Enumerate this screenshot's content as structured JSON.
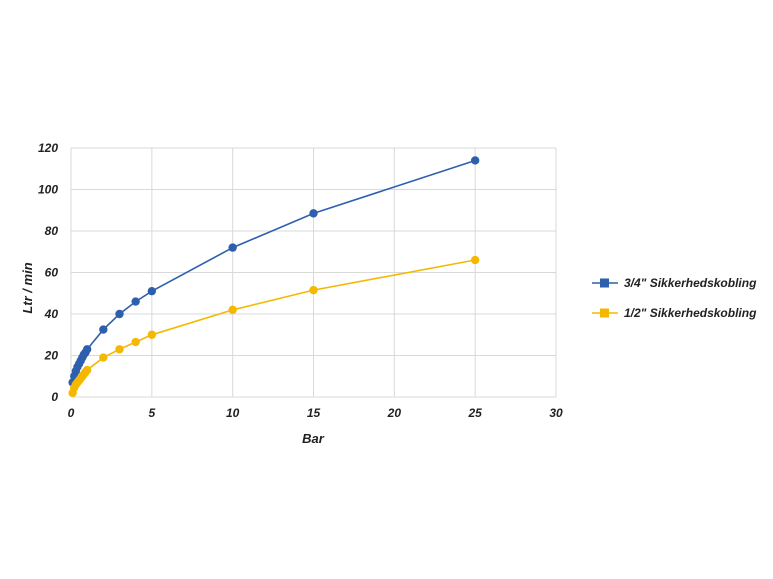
{
  "chart_data": {
    "type": "scatter",
    "xlabel": "Bar",
    "ylabel": "Ltr / min",
    "xlim": [
      0,
      30
    ],
    "ylim": [
      0,
      120
    ],
    "xticks": [
      0,
      5,
      10,
      15,
      20,
      25,
      30
    ],
    "yticks": [
      0,
      20,
      40,
      60,
      80,
      100,
      120
    ],
    "grid": true,
    "legend_position": "right",
    "series": [
      {
        "name": "3/4\" Sikkerhedskobling",
        "color": "#2e5fae",
        "marker": "circle",
        "x": [
          0.1,
          0.2,
          0.3,
          0.4,
          0.5,
          0.6,
          0.7,
          0.8,
          0.9,
          1,
          2,
          3,
          4,
          5,
          10,
          15,
          25
        ],
        "y": [
          7,
          10,
          12.5,
          14.5,
          16,
          17.5,
          19,
          20.5,
          21.5,
          23,
          32.5,
          40,
          46,
          51,
          72,
          88.5,
          114
        ]
      },
      {
        "name": "1/2\" Sikkerhedskobling",
        "color": "#f5b800",
        "marker": "circle",
        "x": [
          0.1,
          0.2,
          0.3,
          0.4,
          0.5,
          0.6,
          0.7,
          0.8,
          0.9,
          1,
          2,
          3,
          4,
          5,
          10,
          15,
          25
        ],
        "y": [
          2,
          4.5,
          6,
          7,
          8,
          9,
          10,
          11,
          12,
          13,
          19,
          23,
          26.5,
          30,
          42,
          51.5,
          66
        ]
      }
    ]
  }
}
